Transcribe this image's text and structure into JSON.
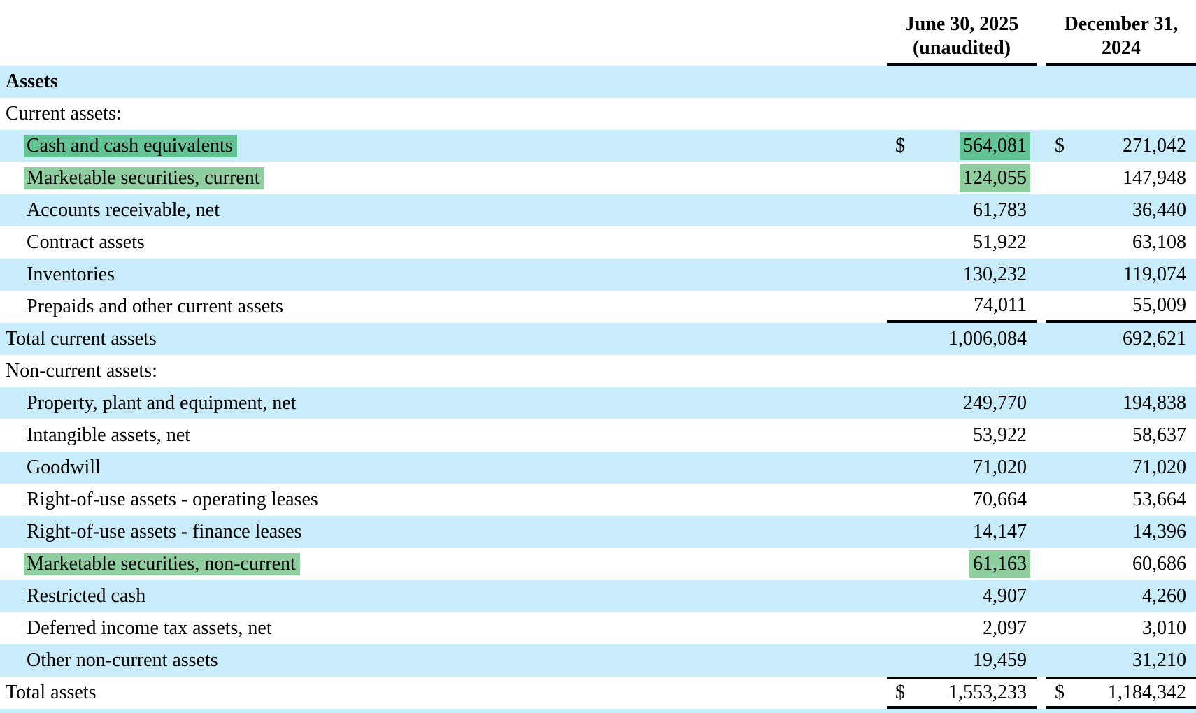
{
  "table": {
    "colors": {
      "row_blue": "#c9ecfa",
      "highlight_on_blue": "#62c494",
      "highlight_on_white": "#8fce9e"
    },
    "columns": [
      {
        "line1": "June 30, 2025",
        "line2": "(unaudited)"
      },
      {
        "line1": "December 31,",
        "line2": "2024"
      }
    ],
    "rows": [
      {
        "label": "Assets",
        "bold": true,
        "indent": 0,
        "shade": "blue"
      },
      {
        "label": "Current assets:",
        "indent": 0,
        "shade": "white"
      },
      {
        "label": "Cash and cash equivalents",
        "indent": 1,
        "shade": "blue",
        "highlight": "green-dark",
        "d1": "$",
        "v1": "564,081",
        "hl1": true,
        "d2": "$",
        "v2": "271,042"
      },
      {
        "label": "Marketable securities, current",
        "indent": 1,
        "shade": "white",
        "highlight": "green-light",
        "v1": "124,055",
        "hl1": true,
        "v2": "147,948"
      },
      {
        "label": "Accounts receivable, net",
        "indent": 1,
        "shade": "blue",
        "v1": "61,783",
        "v2": "36,440"
      },
      {
        "label": "Contract assets",
        "indent": 1,
        "shade": "white",
        "v1": "51,922",
        "v2": "63,108"
      },
      {
        "label": "Inventories",
        "indent": 1,
        "shade": "blue",
        "v1": "130,232",
        "v2": "119,074"
      },
      {
        "label": "Prepaids and other current assets",
        "indent": 1,
        "shade": "white",
        "v1": "74,011",
        "v2": "55,009",
        "border_bottom": true
      },
      {
        "label": "Total current assets",
        "indent": 0,
        "shade": "blue",
        "v1": "1,006,084",
        "v2": "692,621"
      },
      {
        "label": "Non-current assets:",
        "indent": 0,
        "shade": "white"
      },
      {
        "label": "Property, plant and equipment, net",
        "indent": 1,
        "shade": "blue",
        "v1": "249,770",
        "v2": "194,838"
      },
      {
        "label": "Intangible assets, net",
        "indent": 1,
        "shade": "white",
        "v1": "53,922",
        "v2": "58,637"
      },
      {
        "label": "Goodwill",
        "indent": 1,
        "shade": "blue",
        "v1": "71,020",
        "v2": "71,020"
      },
      {
        "label": "Right-of-use assets - operating leases",
        "indent": 1,
        "shade": "white",
        "v1": "70,664",
        "v2": "53,664"
      },
      {
        "label": "Right-of-use assets - finance leases",
        "indent": 1,
        "shade": "blue",
        "v1": "14,147",
        "v2": "14,396"
      },
      {
        "label": "Marketable securities, non-current",
        "indent": 1,
        "shade": "white",
        "highlight": "green-light",
        "v1": "61,163",
        "hl1": true,
        "v2": "60,686"
      },
      {
        "label": "Restricted cash",
        "indent": 1,
        "shade": "blue",
        "v1": "4,907",
        "v2": "4,260"
      },
      {
        "label": "Deferred income tax assets, net",
        "indent": 1,
        "shade": "white",
        "v1": "2,097",
        "v2": "3,010"
      },
      {
        "label": "Other non-current assets",
        "indent": 1,
        "shade": "blue",
        "v1": "19,459",
        "v2": "31,210"
      },
      {
        "label": "Total assets",
        "indent": 0,
        "shade": "white",
        "d1": "$",
        "v1": "1,553,233",
        "d2": "$",
        "v2": "1,184,342",
        "border_top": true,
        "border_bottom": true
      }
    ]
  }
}
